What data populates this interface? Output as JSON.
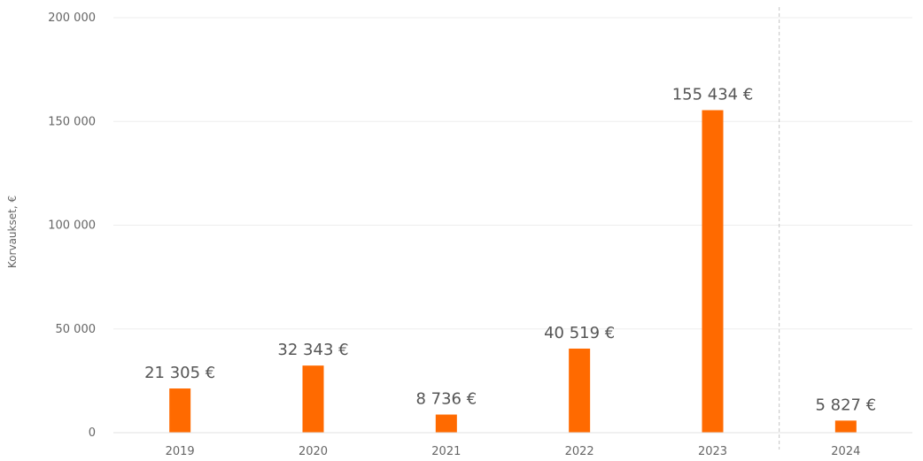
{
  "chart_data": {
    "type": "bar",
    "categories": [
      "2019",
      "2020",
      "2021",
      "2022",
      "2023",
      "2024"
    ],
    "values": [
      21305,
      32343,
      8736,
      40519,
      155434,
      5827
    ],
    "data_labels": [
      "21 305 €",
      "32 343 €",
      "8 736 €",
      "40 519 €",
      "155 434 €",
      "5 827 €"
    ],
    "ylabel": "Korvaukset, €",
    "xlabel": "",
    "ylim": [
      0,
      200000
    ],
    "yticks": [
      0,
      50000,
      100000,
      150000,
      200000
    ],
    "ytick_labels": [
      "0",
      "50 000",
      "100 000",
      "150 000",
      "200 000"
    ],
    "grid": true,
    "divider_before_category": "2024",
    "colors": {
      "bar": "#ff6a00",
      "grid": "#ededed",
      "divider": "#c4c4c4",
      "text": "#666666"
    }
  }
}
